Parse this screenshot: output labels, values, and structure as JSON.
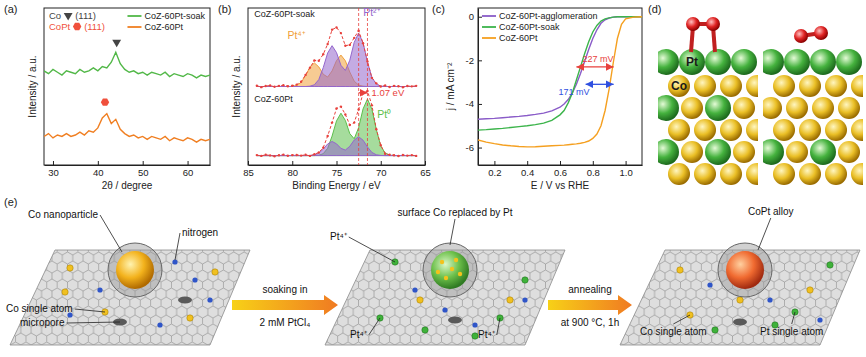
{
  "chart_data": [
    {
      "type": "line",
      "panel_label": "(a)",
      "x_label": "2θ / degree",
      "y_label": "Intensity / a.u.",
      "xlim": [
        28,
        65
      ],
      "xticks": [
        30,
        40,
        50,
        60
      ],
      "ylim": [
        0,
        11
      ],
      "tick_labels": "x",
      "legend": "top right",
      "x": [
        28,
        29,
        30,
        31,
        32,
        33,
        34,
        35,
        36,
        37,
        38,
        39,
        40,
        41,
        42,
        43,
        44,
        45,
        46,
        47,
        48,
        49,
        50,
        51,
        52,
        53,
        54,
        55,
        56,
        57,
        58,
        59,
        60,
        61,
        62,
        63,
        64,
        65
      ],
      "series": [
        {
          "name": "CoZ-60Pt-soak",
          "color": "#52b848",
          "values": [
            6.6,
            6.4,
            6.7,
            6.5,
            6.3,
            6.6,
            6.5,
            6.4,
            6.7,
            6.5,
            6.6,
            6.8,
            6.6,
            6.9,
            6.8,
            7.2,
            7.9,
            7.1,
            6.7,
            6.5,
            6.6,
            6.4,
            6.5,
            6.3,
            6.5,
            6.4,
            6.3,
            6.5,
            6.2,
            6.4,
            6.3,
            6.2,
            6.4,
            6.3,
            6.1,
            6.3,
            6.2,
            6.3
          ]
        },
        {
          "name": "CoZ-60Pt",
          "color": "#f07f22",
          "values": [
            2.0,
            2.2,
            1.9,
            2.1,
            2.0,
            2.2,
            2.0,
            2.1,
            2.3,
            2.1,
            2.4,
            2.3,
            2.6,
            3.3,
            3.6,
            2.9,
            3.2,
            2.5,
            2.2,
            2.0,
            2.1,
            1.9,
            2.0,
            1.8,
            2.0,
            1.9,
            1.8,
            2.0,
            1.7,
            1.9,
            1.8,
            1.7,
            1.9,
            1.8,
            1.6,
            1.8,
            1.7,
            1.8
          ]
        }
      ],
      "peak_markers": [
        {
          "name": "Co",
          "hkl": "(111)",
          "x": 44.2,
          "y": 8.6,
          "color": "#444444",
          "marker": "triangle-down"
        },
        {
          "name": "CoPt",
          "hkl": "(111)",
          "x": 41.6,
          "y": 4.4,
          "color": "#f0503c",
          "marker": "hexagon"
        }
      ]
    },
    {
      "type": "area",
      "panel_label": "(b)",
      "x_label": "Binding Energy / eV",
      "y_label": "Intensity / a.u.",
      "xlim": [
        85,
        65
      ],
      "xticks": [
        85,
        80,
        75,
        70,
        65
      ],
      "ylim": [
        0,
        10
      ],
      "tick_labels": "x",
      "x": [
        84,
        83.5,
        83,
        82.5,
        82,
        81.5,
        81,
        80.5,
        80,
        79.5,
        79,
        78.5,
        78,
        77.5,
        77,
        76.5,
        76,
        75.5,
        75,
        74.5,
        74,
        73.5,
        73,
        72.5,
        72,
        71.5,
        71,
        70.5,
        70,
        69.5,
        69,
        68.5,
        68,
        67.5,
        67,
        66.5,
        66
      ],
      "spectra": [
        {
          "label": "CoZ-60Pt-soak",
          "baseline": 5.0,
          "label_at": [
            84.3,
            9.4
          ],
          "series": [
            {
              "name": "Pt⁴⁺",
              "color": "#f0a03a",
              "label_at": [
                79.5,
                8.0
              ],
              "values": [
                0,
                0,
                0,
                0,
                0,
                0,
                0,
                0,
                0.01,
                0.07,
                0.26,
                0.69,
                1.23,
                1.5,
                1.25,
                0.78,
                0.6,
                0.99,
                1.65,
                2.0,
                1.64,
                0.92,
                0.34,
                0.09,
                0.02,
                0,
                0,
                0,
                0,
                0,
                0,
                0,
                0,
                0,
                0,
                0,
                0
              ]
            },
            {
              "name": "Pt²⁺",
              "color": "#9466cc",
              "label_at": [
                71.0,
                9.5
              ],
              "values": [
                0,
                0,
                0,
                0,
                0,
                0,
                0,
                0,
                0,
                0,
                0,
                0,
                0.02,
                0.11,
                0.44,
                1.2,
                2.13,
                2.6,
                2.16,
                1.35,
                1.02,
                1.67,
                2.81,
                3.4,
                2.79,
                1.56,
                0.58,
                0.15,
                0.03,
                0,
                0,
                0,
                0,
                0,
                0,
                0,
                0
              ]
            },
            {
              "type": "line",
              "color": "#e8413c",
              "line_style": "dashed",
              "marker": "circle",
              "values": [
                0.05,
                -0.04,
                0.03,
                0.06,
                -0.02,
                0.04,
                0.08,
                0.02,
                0.05,
                0.12,
                0.3,
                0.74,
                1.2,
                1.66,
                1.64,
                2.05,
                2.7,
                3.62,
                3.76,
                3.4,
                2.6,
                2.65,
                3.1,
                3.55,
                2.76,
                1.6,
                0.55,
                0.2,
                0.0,
                0.06,
                -0.03,
                0.04,
                0.02,
                -0.05,
                0.03,
                0.01,
                0.04
              ]
            }
          ]
        },
        {
          "label": "CoZ-60Pt",
          "baseline": 0.6,
          "label_at": [
            84.3,
            4.0
          ],
          "series": [
            {
              "name": "Pt⁰",
              "color": "#5cbf4c",
              "label_at": [
                69.6,
                3.0
              ],
              "values": [
                0,
                0,
                0,
                0,
                0,
                0,
                0,
                0,
                0,
                0,
                0,
                0,
                0,
                0,
                0.02,
                0.12,
                0.46,
                1.24,
                2.21,
                2.7,
                2.24,
                1.4,
                1.07,
                1.78,
                2.97,
                3.6,
                2.95,
                1.66,
                0.61,
                0.16,
                0.03,
                0,
                0,
                0,
                0,
                0,
                0
              ]
            },
            {
              "color": "#9466cc",
              "values": [
                0,
                0,
                0,
                0,
                0,
                0,
                0,
                0,
                0,
                0,
                0,
                0,
                0.01,
                0.04,
                0.15,
                0.41,
                0.74,
                0.9,
                0.75,
                0.46,
                0.35,
                0.59,
                0.99,
                1.2,
                0.98,
                0.55,
                0.2,
                0.05,
                0.01,
                0,
                0,
                0,
                0,
                0,
                0,
                0,
                0
              ]
            },
            {
              "type": "line",
              "color": "#e8413c",
              "line_style": "dashed",
              "marker": "circle",
              "values": [
                0.03,
                -0.02,
                0.05,
                0.01,
                -0.04,
                0.02,
                0.06,
                -0.01,
                0.03,
                0.04,
                0.0,
                0.05,
                -0.02,
                0.08,
                0.2,
                0.5,
                1.25,
                2.1,
                3.0,
                3.12,
                2.62,
                1.95,
                2.1,
                2.94,
                3.98,
                4.12,
                3.2,
                1.68,
                0.66,
                0.12,
                0.05,
                0.02,
                -0.03,
                0.04,
                0.0,
                0.03,
                -0.02
              ]
            }
          ]
        }
      ],
      "annotations": [
        {
          "text": "1.07 eV",
          "x_from": 72.5,
          "x_to": 71.5,
          "y": 4.6,
          "color": "#e8413c"
        }
      ]
    },
    {
      "type": "line",
      "panel_label": "(c)",
      "x_label": "E / V vs RHE",
      "y_label": "j / mA cm⁻²",
      "xlim": [
        0.1,
        1.1
      ],
      "xticks": [
        0.2,
        0.4,
        0.6,
        0.8,
        {
          "value": 1.0,
          "label": "1.0"
        }
      ],
      "ylim": [
        -6.8,
        0.4
      ],
      "yticks": [
        -6,
        -4,
        -2,
        0
      ],
      "legend": "top left",
      "x": [
        0.1,
        0.15,
        0.2,
        0.25,
        0.3,
        0.35,
        0.4,
        0.45,
        0.5,
        0.55,
        0.6,
        0.625,
        0.65,
        0.675,
        0.7,
        0.725,
        0.75,
        0.775,
        0.8,
        0.825,
        0.85,
        0.875,
        0.9,
        0.925,
        0.95,
        0.975,
        1.0,
        1.05,
        1.1
      ],
      "series": [
        {
          "name": "CoZ-60Pt-agglomeration",
          "color": "#8a5cc8",
          "values": [
            -4.7,
            -4.68,
            -4.66,
            -4.63,
            -4.6,
            -4.57,
            -4.53,
            -4.48,
            -4.42,
            -4.32,
            -4.15,
            -4.0,
            -3.8,
            -3.5,
            -3.1,
            -2.6,
            -2.05,
            -1.5,
            -1.0,
            -0.6,
            -0.3,
            -0.14,
            -0.06,
            -0.02,
            0,
            0,
            0,
            0,
            0
          ]
        },
        {
          "name": "CoZ-60Pt-soak",
          "color": "#3cb44b",
          "values": [
            -5.2,
            -5.18,
            -5.15,
            -5.12,
            -5.08,
            -5.04,
            -5.0,
            -4.95,
            -4.88,
            -4.75,
            -4.5,
            -4.3,
            -3.95,
            -3.5,
            -2.9,
            -2.3,
            -1.7,
            -1.15,
            -0.7,
            -0.4,
            -0.2,
            -0.1,
            -0.05,
            -0.02,
            0,
            0,
            0,
            0,
            0
          ]
        },
        {
          "name": "CoZ-60Pt",
          "color": "#f5a020",
          "values": [
            -5.65,
            -5.75,
            -5.82,
            -5.88,
            -5.92,
            -5.95,
            -5.97,
            -5.96,
            -5.94,
            -5.92,
            -5.9,
            -5.89,
            -5.87,
            -5.85,
            -5.83,
            -5.8,
            -5.76,
            -5.7,
            -5.58,
            -5.38,
            -5.0,
            -4.3,
            -3.3,
            -2.1,
            -1.0,
            -0.35,
            -0.1,
            -0.02,
            0.0
          ]
        }
      ],
      "annotations": [
        {
          "text": "227 mV",
          "x_from": 0.7,
          "x_to": 0.927,
          "y": -2.3,
          "color": "#e8413c"
        },
        {
          "text": "171 mV",
          "x_from": 0.756,
          "x_to": 0.927,
          "y": -3.1,
          "color": "#3050e0"
        }
      ]
    }
  ],
  "diagram_d": {
    "panel_label": "(d)",
    "labels": [
      "Pt",
      "Co"
    ]
  },
  "schematic_e": {
    "panel_label": "(e)",
    "stages": [
      {
        "labels": [
          "Co nanoparticle",
          "nitrogen",
          "Co single atom",
          "micropore"
        ]
      },
      {
        "labels": [
          "Pt⁴⁺",
          "surface Co replaced by Pt",
          "Pt⁴⁺",
          "Pt⁴⁺"
        ]
      },
      {
        "labels": [
          "CoPt alloy",
          "Co single atom",
          "Pt single atom"
        ]
      }
    ],
    "steps": [
      {
        "above": "soaking in",
        "below": "2 mM PtCl₄"
      },
      {
        "above": "annealing",
        "below": "at 900 °C, 1h"
      }
    ]
  }
}
